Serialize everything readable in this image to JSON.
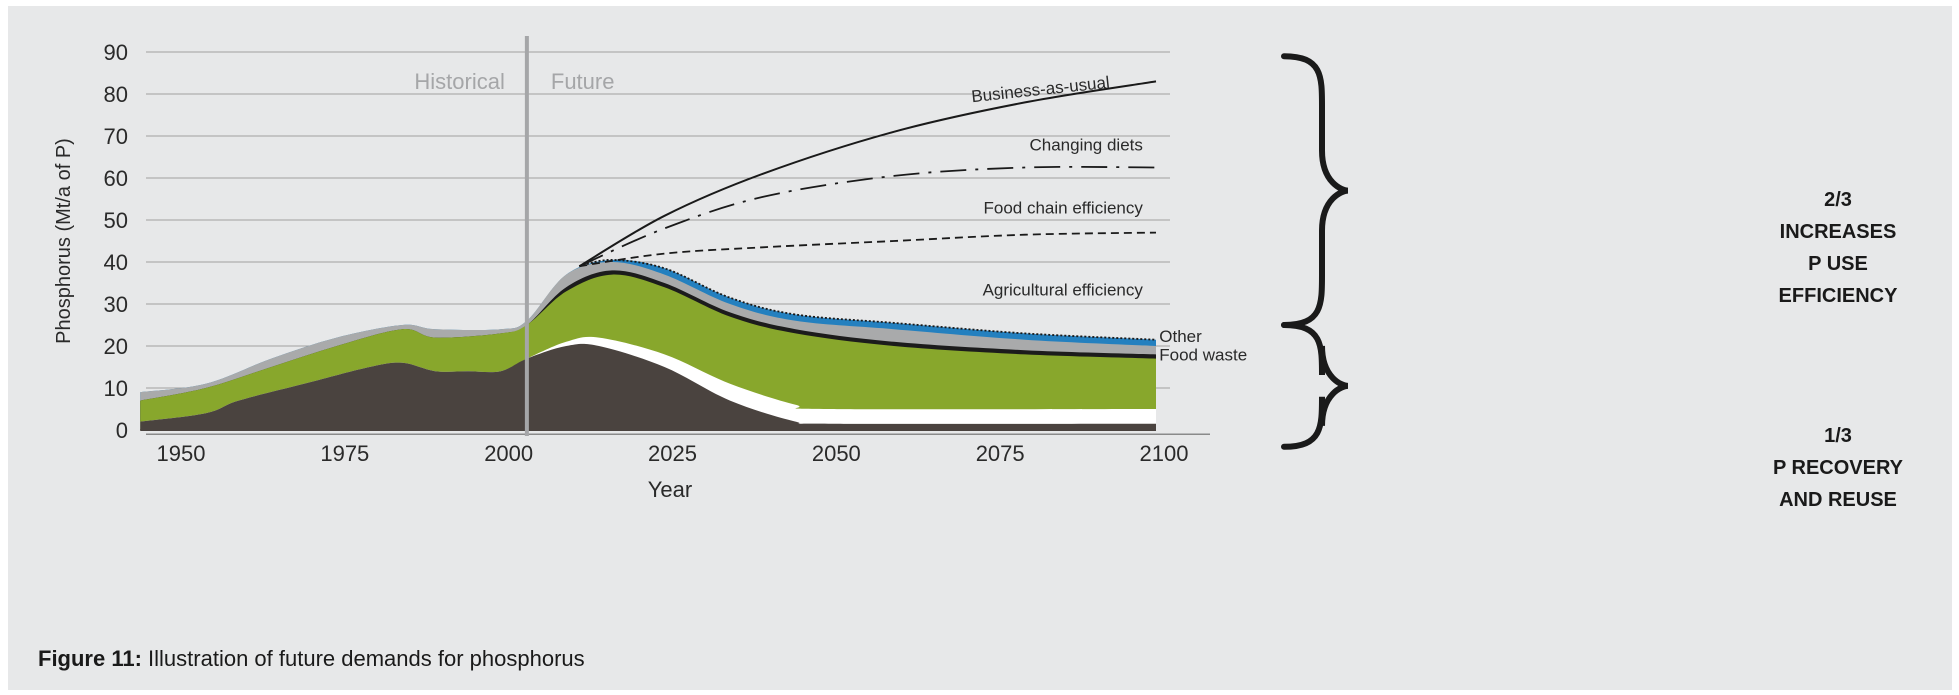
{
  "figure": {
    "label": "Figure 11:",
    "caption": "Illustration of future demands for phosphorus"
  },
  "chart_data": {
    "type": "area",
    "xlabel": "Year",
    "ylabel": "Phosphorus (Mt/a of P)",
    "xlim": [
      1945,
      2100
    ],
    "ylim": [
      0,
      90
    ],
    "x_ticks": [
      1950,
      1975,
      2000,
      2025,
      2050,
      2075,
      2100
    ],
    "y_ticks": [
      0,
      10,
      20,
      30,
      40,
      50,
      60,
      70,
      80,
      90
    ],
    "grid": "horizontal",
    "divider": {
      "x": 2004,
      "left_label": "Historical",
      "right_label": "Future"
    },
    "stacked_layers": [
      {
        "color": "#4a433f",
        "points": [
          [
            1945,
            2
          ],
          [
            1955,
            4
          ],
          [
            1960,
            7
          ],
          [
            1970,
            11
          ],
          [
            1980,
            15
          ],
          [
            1985,
            16
          ],
          [
            1990,
            14
          ],
          [
            1995,
            14
          ],
          [
            2000,
            14
          ],
          [
            2004,
            17
          ],
          [
            2010,
            20
          ],
          [
            2015,
            20
          ],
          [
            2025,
            15
          ],
          [
            2035,
            7
          ],
          [
            2045,
            2
          ],
          [
            2050,
            1.5
          ],
          [
            2100,
            1.5
          ]
        ]
      },
      {
        "color": "#ffffff",
        "points": [
          [
            1945,
            2
          ],
          [
            1955,
            4
          ],
          [
            1960,
            7
          ],
          [
            1970,
            11
          ],
          [
            1980,
            15
          ],
          [
            1985,
            16
          ],
          [
            1990,
            14
          ],
          [
            1995,
            14
          ],
          [
            2000,
            14
          ],
          [
            2004,
            17
          ],
          [
            2010,
            21
          ],
          [
            2015,
            22
          ],
          [
            2025,
            18
          ],
          [
            2035,
            11
          ],
          [
            2045,
            6
          ],
          [
            2050,
            5
          ],
          [
            2100,
            5
          ]
        ]
      },
      {
        "color": "#88a72c",
        "points": [
          [
            1945,
            7
          ],
          [
            1955,
            10
          ],
          [
            1965,
            15
          ],
          [
            1975,
            20
          ],
          [
            1985,
            24
          ],
          [
            1990,
            22
          ],
          [
            2000,
            23
          ],
          [
            2004,
            25
          ],
          [
            2010,
            33
          ],
          [
            2017,
            37
          ],
          [
            2025,
            34
          ],
          [
            2035,
            27
          ],
          [
            2045,
            23
          ],
          [
            2060,
            20
          ],
          [
            2080,
            18
          ],
          [
            2100,
            17
          ]
        ]
      },
      {
        "color": "#1c1c1c",
        "points": [
          [
            1945,
            7
          ],
          [
            1955,
            10
          ],
          [
            1965,
            15
          ],
          [
            1975,
            20
          ],
          [
            1985,
            24
          ],
          [
            1990,
            22
          ],
          [
            2000,
            23
          ],
          [
            2004,
            25
          ],
          [
            2010,
            34
          ],
          [
            2017,
            38
          ],
          [
            2025,
            35
          ],
          [
            2035,
            28
          ],
          [
            2045,
            24
          ],
          [
            2060,
            21
          ],
          [
            2080,
            19
          ],
          [
            2100,
            18
          ]
        ]
      },
      {
        "color": "#a9aaab",
        "points": [
          [
            1945,
            9
          ],
          [
            1955,
            11
          ],
          [
            1965,
            17
          ],
          [
            1975,
            22
          ],
          [
            1985,
            25
          ],
          [
            1990,
            24
          ],
          [
            2000,
            24
          ],
          [
            2004,
            26
          ],
          [
            2010,
            37
          ],
          [
            2017,
            40
          ],
          [
            2025,
            37
          ],
          [
            2035,
            30
          ],
          [
            2045,
            26
          ],
          [
            2060,
            24
          ],
          [
            2080,
            21.5
          ],
          [
            2100,
            20
          ]
        ]
      },
      {
        "color": "#2480bf",
        "points": [
          [
            1945,
            9
          ],
          [
            1955,
            11
          ],
          [
            1965,
            17
          ],
          [
            1975,
            22
          ],
          [
            1985,
            25
          ],
          [
            1990,
            24
          ],
          [
            2000,
            24
          ],
          [
            2004,
            26
          ],
          [
            2010,
            37
          ],
          [
            2017,
            40.5
          ],
          [
            2025,
            38.5
          ],
          [
            2035,
            31.5
          ],
          [
            2045,
            27.5
          ],
          [
            2060,
            25.5
          ],
          [
            2080,
            23
          ],
          [
            2100,
            21.5
          ]
        ]
      }
    ],
    "scenario_lines": [
      {
        "name": "Business-as-usual",
        "style": "solid",
        "points": [
          [
            2012,
            39
          ],
          [
            2025,
            51
          ],
          [
            2040,
            61
          ],
          [
            2060,
            71
          ],
          [
            2080,
            78
          ],
          [
            2100,
            83
          ]
        ]
      },
      {
        "name": "Changing diets",
        "style": "dash-dot",
        "points": [
          [
            2012,
            39
          ],
          [
            2025,
            48
          ],
          [
            2040,
            55.5
          ],
          [
            2060,
            60.5
          ],
          [
            2080,
            62.5
          ],
          [
            2100,
            62.5
          ]
        ]
      },
      {
        "name": "Food chain efficiency",
        "style": "dashed",
        "points": [
          [
            2012,
            39
          ],
          [
            2025,
            42
          ],
          [
            2040,
            43.5
          ],
          [
            2060,
            45
          ],
          [
            2080,
            46.5
          ],
          [
            2100,
            47
          ]
        ]
      },
      {
        "name": "Agricultural efficiency",
        "style": "dotted",
        "points": [
          [
            2012,
            39
          ],
          [
            2017,
            40.5
          ],
          [
            2025,
            38.5
          ],
          [
            2035,
            31.5
          ],
          [
            2045,
            27.5
          ],
          [
            2060,
            25.5
          ],
          [
            2080,
            23
          ],
          [
            2100,
            21.5
          ]
        ]
      }
    ],
    "labels": [
      {
        "text": "Business-as-usual",
        "x": 2093,
        "y": 81.5,
        "rotate": -6,
        "anchor": "end"
      },
      {
        "text": "Changing diets",
        "x": 2098,
        "y": 66.5,
        "anchor": "end"
      },
      {
        "text": "Food chain efficiency",
        "x": 2098,
        "y": 51.5,
        "anchor": "end"
      },
      {
        "text": "Agricultural efficiency",
        "x": 2098,
        "y": 32,
        "anchor": "end"
      },
      {
        "text": "Other",
        "x": 2100.5,
        "y": 21,
        "anchor": "start"
      },
      {
        "text": "Food waste",
        "x": 2100.5,
        "y": 16.5,
        "anchor": "start"
      }
    ],
    "annotations": [
      {
        "lines": [
          "2/3",
          "INCREASES",
          "P USE",
          "EFFICIENCY"
        ],
        "ymin": 25,
        "ymax": 89
      },
      {
        "lines": [
          "1/3",
          "P RECOVERY",
          "AND REUSE"
        ],
        "ymin": -4,
        "ymax": 25
      }
    ]
  }
}
